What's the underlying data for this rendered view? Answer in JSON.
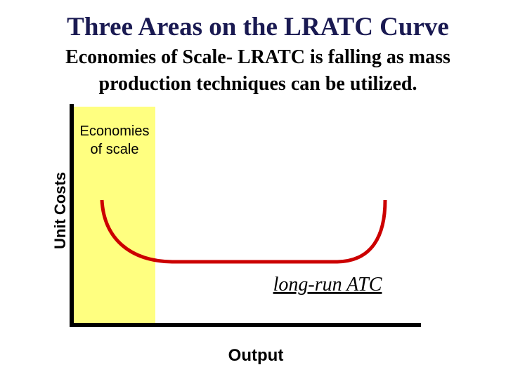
{
  "header": {
    "title": "Three Areas on the LRATC Curve",
    "subtitle_lines": [
      "Economies of Scale- LRATC is falling as mass",
      "production techniques can be utilized."
    ]
  },
  "diagram": {
    "region_label_lines": [
      "Economies",
      "of scale"
    ],
    "y_axis_label": "Unit Costs",
    "curve_label": "long-run ATC",
    "x_axis_label": "Output"
  }
}
